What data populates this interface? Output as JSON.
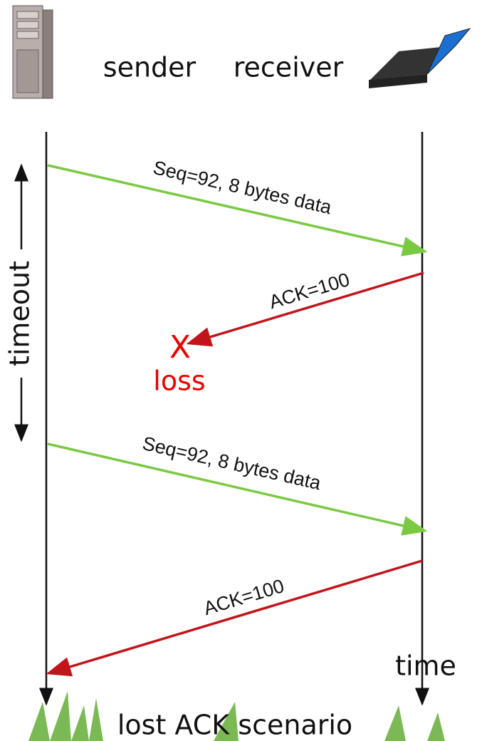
{
  "header": {
    "sender": "sender",
    "receiver": "receiver"
  },
  "messages": [
    {
      "label": "Seq=92, 8 bytes data"
    },
    {
      "label": "ACK=100"
    },
    {
      "label": "Seq=92, 8 bytes data"
    },
    {
      "label": "ACK=100"
    }
  ],
  "timeout": "timeout",
  "loss_mark": "X",
  "loss": "loss",
  "time": "time",
  "caption": "lost ACK scenario"
}
